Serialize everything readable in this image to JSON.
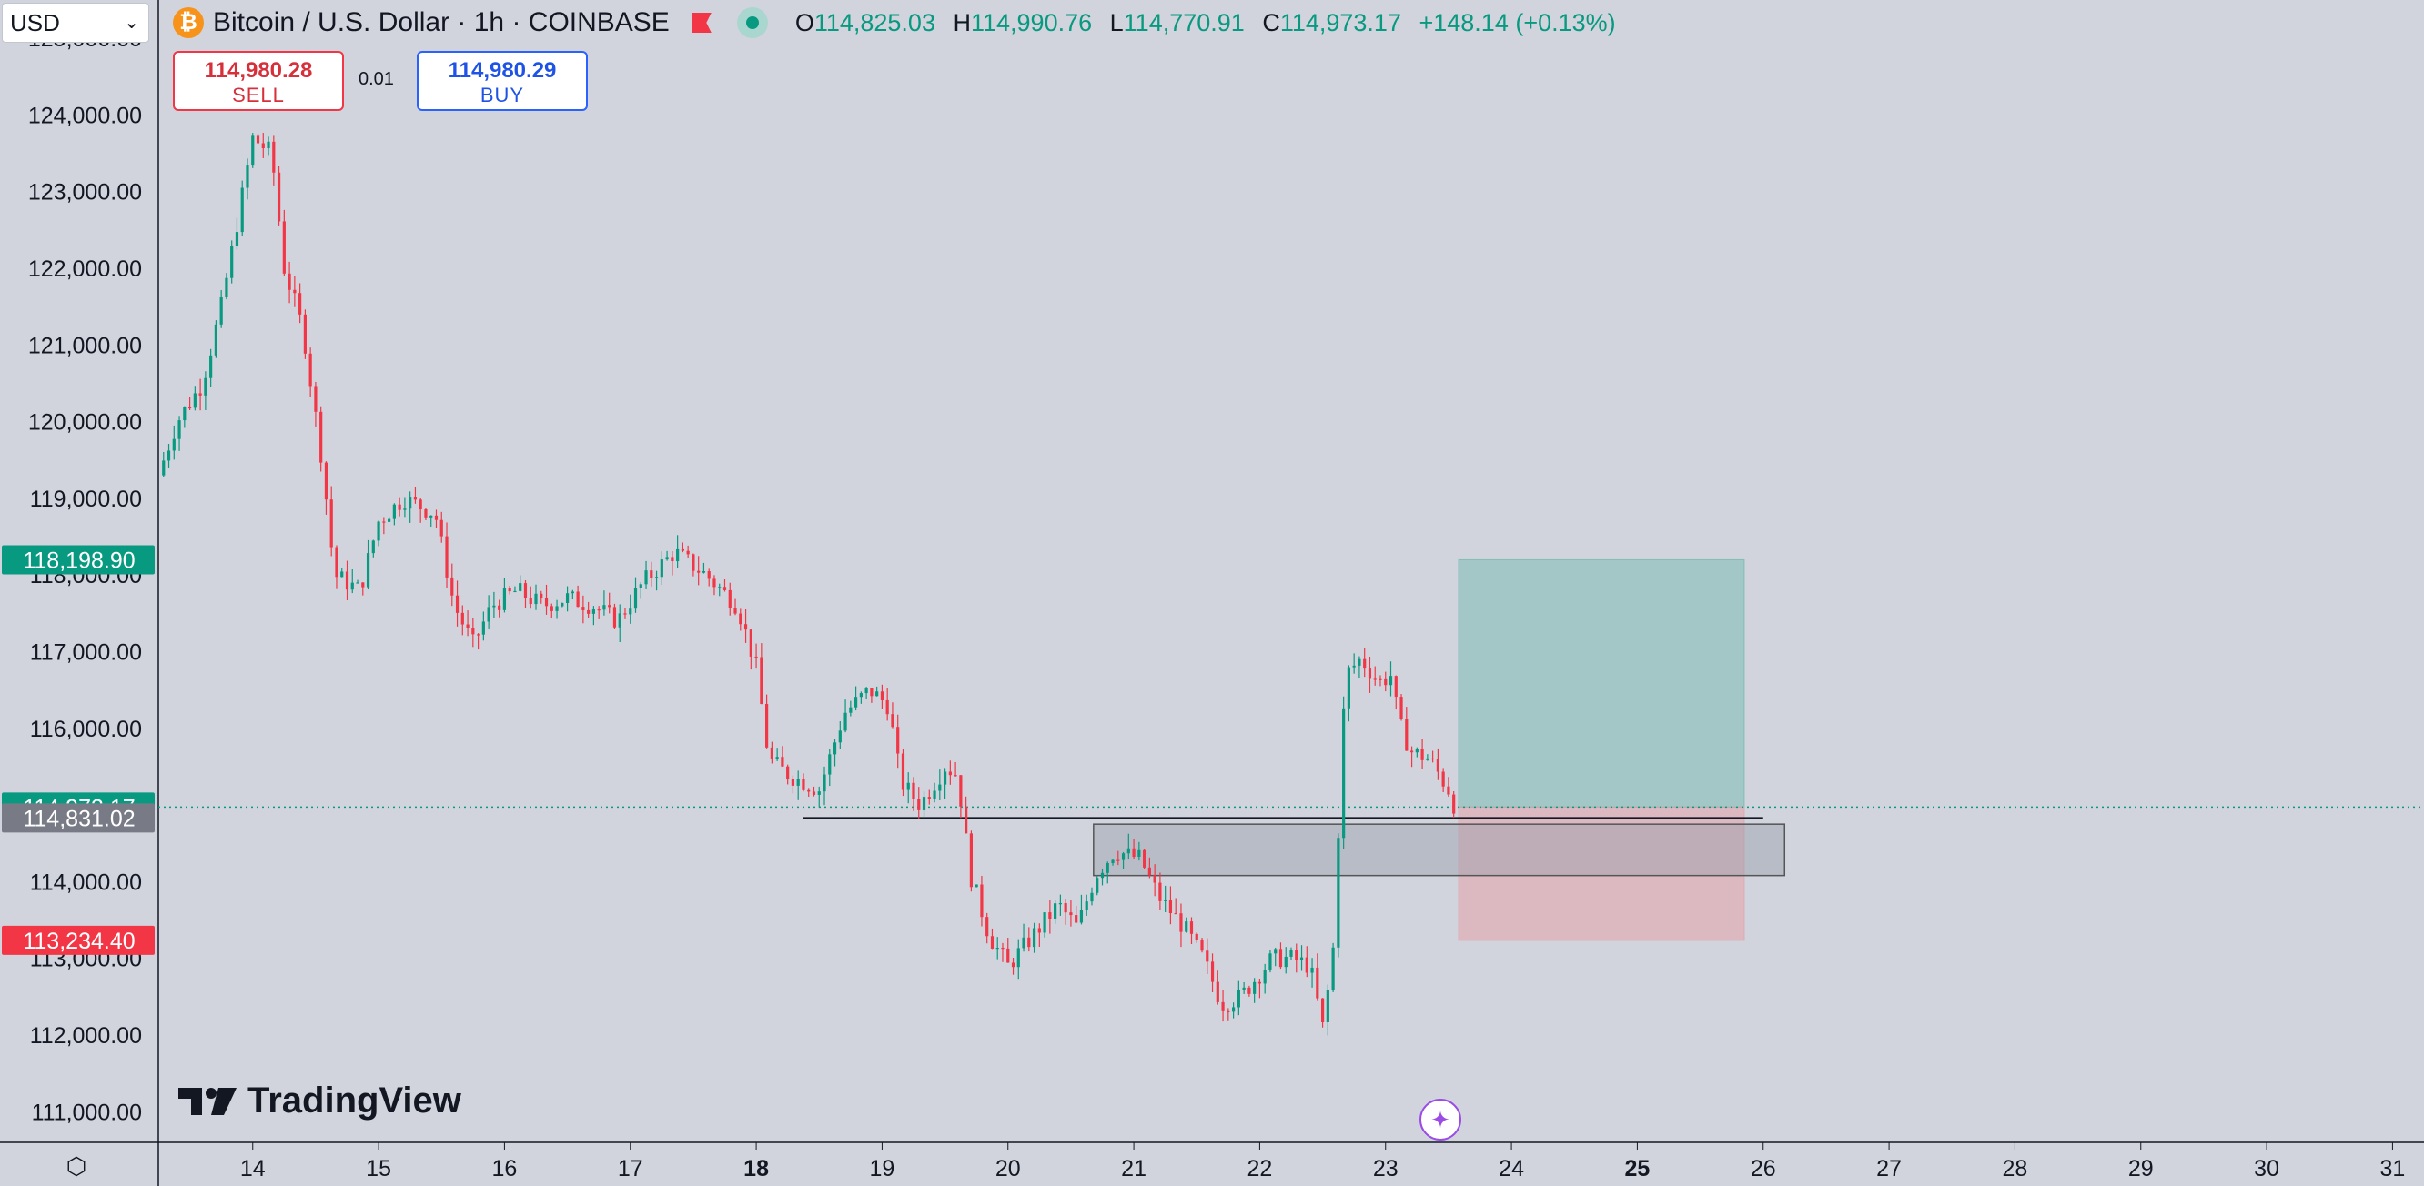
{
  "header": {
    "currency": "USD",
    "symbol_icon": "₿",
    "symbol_title": "Bitcoin / U.S. Dollar · 1h · COINBASE",
    "ohlc": {
      "o_label": "O",
      "o": "114,825.03",
      "h_label": "H",
      "h": "114,990.76",
      "l_label": "L",
      "l": "114,770.91",
      "c_label": "C",
      "c": "114,973.17",
      "change": "+148.14 (+0.13%)"
    }
  },
  "trade": {
    "sell_price": "114,980.28",
    "sell_label": "SELL",
    "qty": "0.01",
    "buy_price": "114,980.29",
    "buy_label": "BUY"
  },
  "logo_text": "TradingView",
  "icons": [
    "bitcoin-icon",
    "flag-icon",
    "live-status-icon",
    "chevron-down-icon",
    "tradingview-logo-icon",
    "sparkle-assistant-icon",
    "settings-icon"
  ],
  "colors": {
    "background": "#d1d4dc",
    "up": "#089981",
    "down": "#f23645",
    "profit_zone": "#4caf9e",
    "loss_zone": "#e89aa0",
    "axis_text": "#131722"
  },
  "price_labels": [
    {
      "text": "118,198.90",
      "price": 118198.9,
      "color": "#089981"
    },
    {
      "text": "114,973.17",
      "price": 114973.17,
      "color": "#089981"
    },
    {
      "text": "114,831.02",
      "price": 114831.02,
      "color": "#787b86"
    },
    {
      "text": "113,234.40",
      "price": 113234.4,
      "color": "#f23645"
    }
  ],
  "chart_data": {
    "type": "candlestick",
    "ylim": [
      110600,
      125500
    ],
    "xlim": [
      13.25,
      31.25
    ],
    "y_ticks": [
      {
        "value": 111000,
        "label": "111,000.00"
      },
      {
        "value": 112000,
        "label": "112,000.00"
      },
      {
        "value": 113000,
        "label": "113,000.00"
      },
      {
        "value": 114000,
        "label": "114,000.00"
      },
      {
        "value": 115000,
        "label": "115,000.00"
      },
      {
        "value": 116000,
        "label": "116,000.00"
      },
      {
        "value": 117000,
        "label": "117,000.00"
      },
      {
        "value": 118000,
        "label": "118,000.00"
      },
      {
        "value": 119000,
        "label": "119,000.00"
      },
      {
        "value": 120000,
        "label": "120,000.00"
      },
      {
        "value": 121000,
        "label": "121,000.00"
      },
      {
        "value": 122000,
        "label": "122,000.00"
      },
      {
        "value": 123000,
        "label": "123,000.00"
      },
      {
        "value": 124000,
        "label": "124,000.00"
      },
      {
        "value": 125000,
        "label": "125,000.00"
      }
    ],
    "x_ticks": [
      {
        "value": 14,
        "label": "14",
        "bold": false
      },
      {
        "value": 15,
        "label": "15",
        "bold": false
      },
      {
        "value": 16,
        "label": "16",
        "bold": false
      },
      {
        "value": 17,
        "label": "17",
        "bold": false
      },
      {
        "value": 18,
        "label": "18",
        "bold": true
      },
      {
        "value": 19,
        "label": "19",
        "bold": false
      },
      {
        "value": 20,
        "label": "20",
        "bold": false
      },
      {
        "value": 21,
        "label": "21",
        "bold": false
      },
      {
        "value": 22,
        "label": "22",
        "bold": false
      },
      {
        "value": 23,
        "label": "23",
        "bold": false
      },
      {
        "value": 24,
        "label": "24",
        "bold": false
      },
      {
        "value": 25,
        "label": "25",
        "bold": true
      },
      {
        "value": 26,
        "label": "26",
        "bold": false
      },
      {
        "value": 27,
        "label": "27",
        "bold": false
      },
      {
        "value": 28,
        "label": "28",
        "bold": false
      },
      {
        "value": 29,
        "label": "29",
        "bold": false
      },
      {
        "value": 30,
        "label": "30",
        "bold": false
      },
      {
        "value": 31,
        "label": "31",
        "bold": false
      }
    ],
    "price_path": [
      [
        13.25,
        119300
      ],
      [
        13.4,
        120000
      ],
      [
        13.6,
        120500
      ],
      [
        13.75,
        121500
      ],
      [
        13.9,
        122800
      ],
      [
        14.0,
        123700
      ],
      [
        14.15,
        123500
      ],
      [
        14.25,
        122000
      ],
      [
        14.4,
        121200
      ],
      [
        14.55,
        119500
      ],
      [
        14.65,
        118000
      ],
      [
        14.85,
        117800
      ],
      [
        15.0,
        118700
      ],
      [
        15.2,
        119000
      ],
      [
        15.45,
        118800
      ],
      [
        15.6,
        117600
      ],
      [
        15.75,
        117100
      ],
      [
        15.9,
        117600
      ],
      [
        16.1,
        117800
      ],
      [
        16.3,
        117600
      ],
      [
        16.5,
        117700
      ],
      [
        16.7,
        117600
      ],
      [
        16.9,
        117400
      ],
      [
        17.1,
        117900
      ],
      [
        17.35,
        118300
      ],
      [
        17.6,
        118000
      ],
      [
        17.85,
        117600
      ],
      [
        18.0,
        116800
      ],
      [
        18.1,
        115600
      ],
      [
        18.25,
        115400
      ],
      [
        18.5,
        115200
      ],
      [
        18.7,
        116200
      ],
      [
        18.9,
        116500
      ],
      [
        19.05,
        116300
      ],
      [
        19.15,
        115300
      ],
      [
        19.3,
        115000
      ],
      [
        19.5,
        115500
      ],
      [
        19.6,
        115400
      ],
      [
        19.7,
        114100
      ],
      [
        19.85,
        113300
      ],
      [
        20.0,
        112900
      ],
      [
        20.2,
        113300
      ],
      [
        20.4,
        113700
      ],
      [
        20.55,
        113400
      ],
      [
        20.7,
        114100
      ],
      [
        20.85,
        114400
      ],
      [
        21.05,
        114300
      ],
      [
        21.2,
        113800
      ],
      [
        21.4,
        113400
      ],
      [
        21.55,
        113000
      ],
      [
        21.7,
        112400
      ],
      [
        21.85,
        112500
      ],
      [
        21.95,
        112700
      ],
      [
        22.1,
        113000
      ],
      [
        22.25,
        113000
      ],
      [
        22.4,
        112900
      ],
      [
        22.5,
        112100
      ],
      [
        22.58,
        113000
      ],
      [
        22.68,
        116700
      ],
      [
        22.8,
        116900
      ],
      [
        22.95,
        116600
      ],
      [
        23.05,
        116700
      ],
      [
        23.1,
        116100
      ],
      [
        23.2,
        115700
      ],
      [
        23.35,
        115600
      ],
      [
        23.5,
        115200
      ],
      [
        23.55,
        114973
      ]
    ],
    "position_tool": {
      "x_start": 23.58,
      "x_end": 25.85,
      "entry": 114973.17,
      "target": 118198.9,
      "stop": 113234.4
    },
    "range_box": {
      "x_start": 20.68,
      "x_end": 26.17,
      "top": 114750,
      "bottom": 114080
    },
    "horizontal_ray": {
      "x_start": 18.37,
      "x_end": 26.0,
      "price": 114831.02
    }
  }
}
